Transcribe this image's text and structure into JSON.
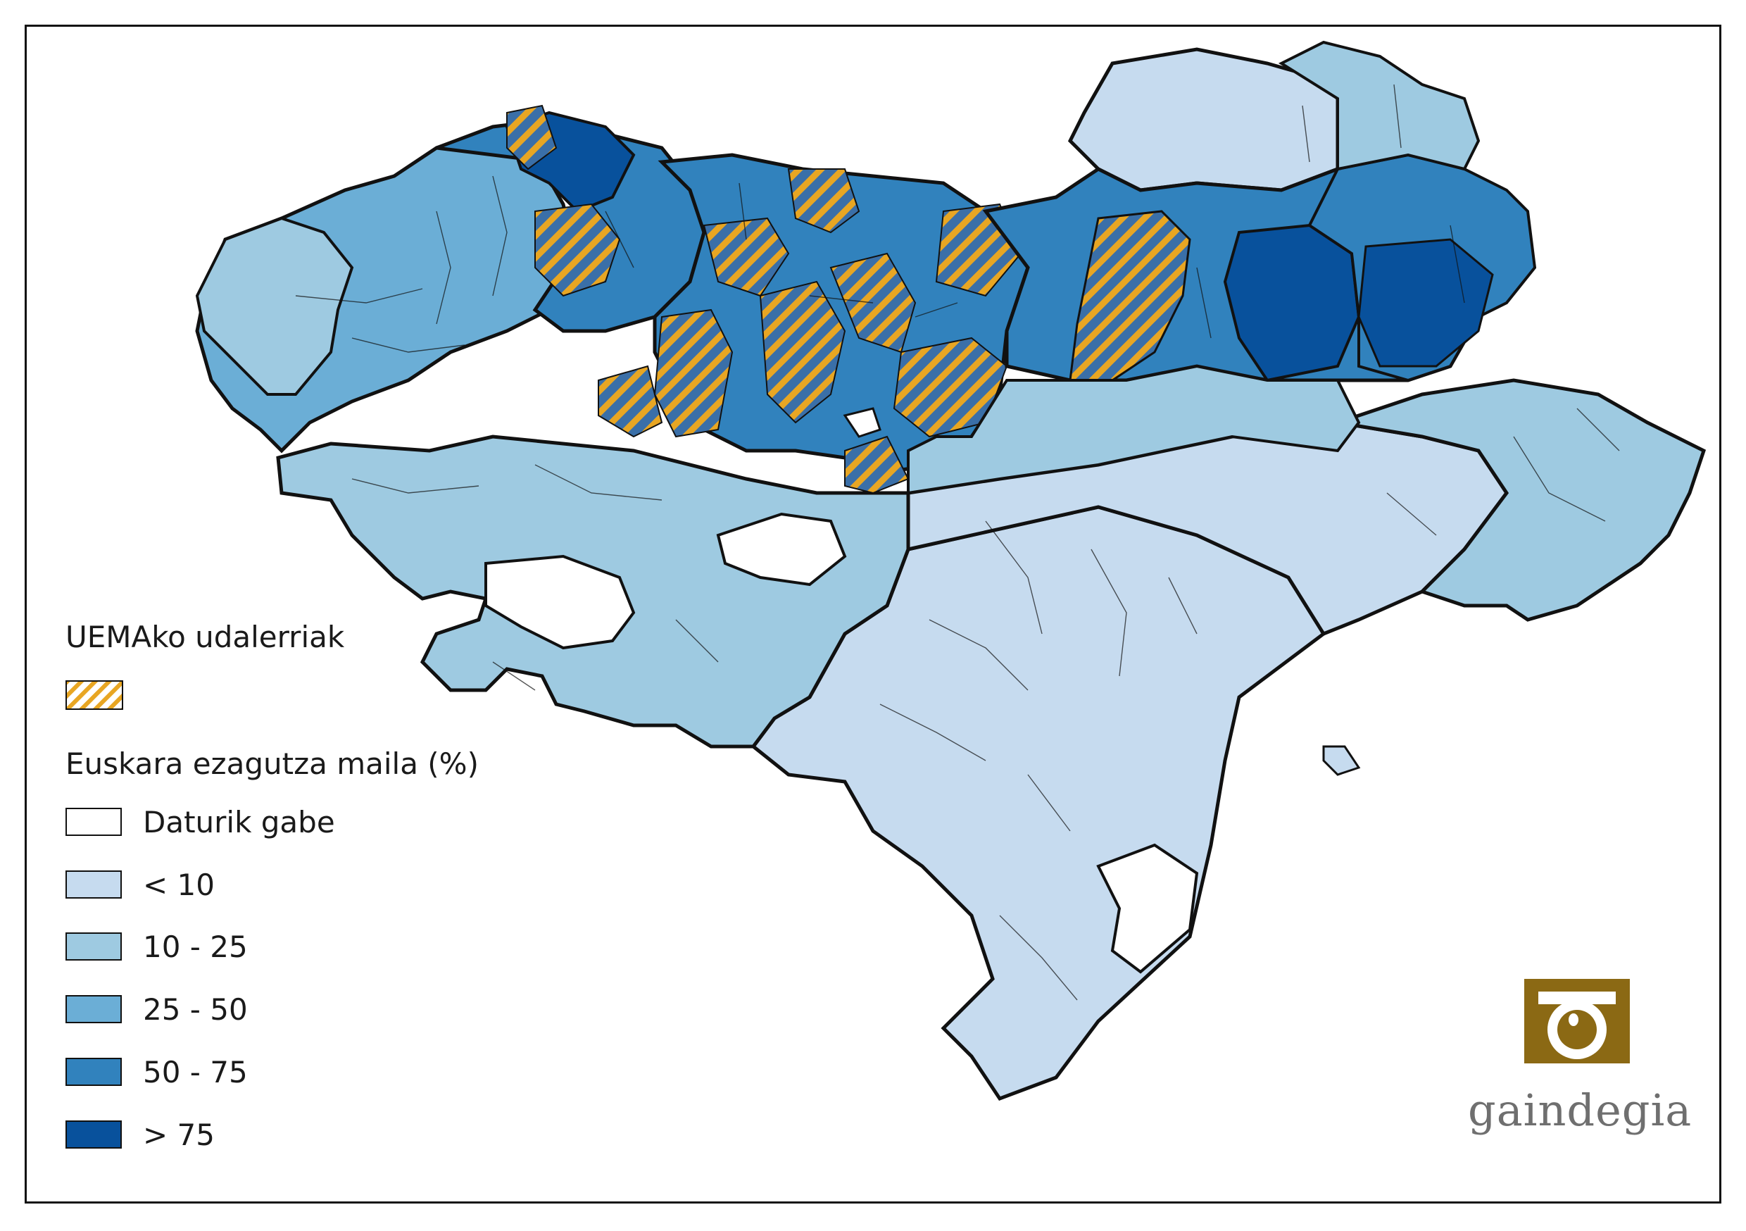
{
  "map": {
    "region_fill": {
      "no_data": "#ffffff",
      "lt10": "#c6dbef",
      "r10_25": "#9ecae1",
      "r25_50": "#6baed6",
      "r50_75": "#3182bd",
      "gt75": "#08519c"
    },
    "hatch_color": "#e8a623",
    "border_color": "#111111"
  },
  "legend": {
    "uema_title": "UEMAko udalerriak",
    "knowledge_title": "Euskara ezagutza maila (%)",
    "items": [
      {
        "label": "Daturik gabe",
        "color": "#ffffff"
      },
      {
        "label": "< 10",
        "color": "#c6dbef"
      },
      {
        "label": "10 - 25",
        "color": "#9ecae1"
      },
      {
        "label": "25 - 50",
        "color": "#6baed6"
      },
      {
        "label": "50 - 75",
        "color": "#3182bd"
      },
      {
        "label": "> 75",
        "color": "#08519c"
      }
    ]
  },
  "logo": {
    "text": "gaindegia",
    "color": "#8b6914"
  }
}
